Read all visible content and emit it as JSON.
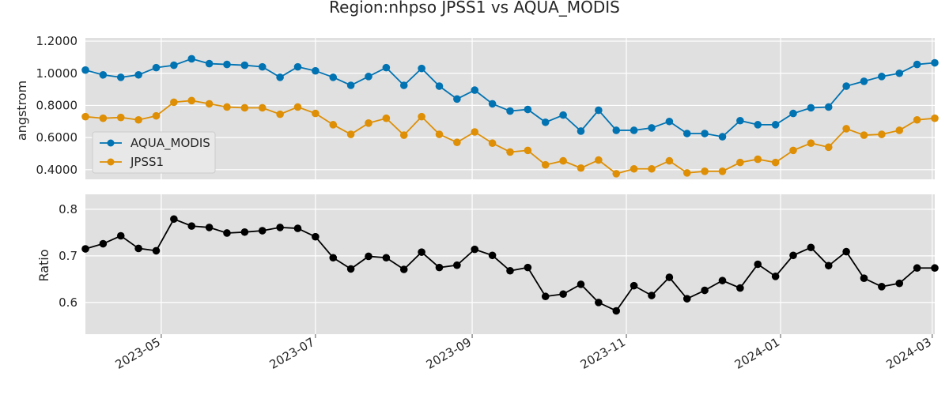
{
  "chart_data": [
    {
      "type": "line",
      "title": "Region:nhpso JPSS1 vs AQUA_MODIS",
      "xlabel": "",
      "ylabel": "angstrom",
      "ylim": [
        0.34,
        1.22
      ],
      "yticks": [
        "0.4000",
        "0.6000",
        "0.8000",
        "1.0000",
        "1.2000"
      ],
      "ytick_values": [
        0.4,
        0.6,
        0.8,
        1.0,
        1.2
      ],
      "grid": true,
      "legend_position": "lower-left",
      "x_start": "2023-04-01",
      "x_step_days": 7,
      "series": [
        {
          "name": "AQUA_MODIS",
          "color": "#0173b2",
          "values": [
            1.02,
            0.99,
            0.975,
            0.99,
            1.035,
            1.05,
            1.09,
            1.06,
            1.055,
            1.05,
            1.04,
            0.975,
            1.04,
            1.015,
            0.975,
            0.925,
            0.98,
            1.035,
            0.925,
            1.03,
            0.92,
            0.84,
            0.895,
            0.81,
            0.765,
            0.775,
            0.695,
            0.74,
            0.64,
            0.77,
            0.645,
            0.645,
            0.66,
            0.7,
            0.625,
            0.625,
            0.605,
            0.705,
            0.68,
            0.68,
            0.75,
            0.785,
            0.79,
            0.92,
            0.95,
            0.98,
            1.0,
            1.055,
            1.065
          ]
        },
        {
          "name": "JPSS1",
          "color": "#de8f05",
          "values": [
            0.73,
            0.72,
            0.725,
            0.71,
            0.735,
            0.82,
            0.83,
            0.81,
            0.79,
            0.785,
            0.785,
            0.745,
            0.79,
            0.75,
            0.68,
            0.62,
            0.69,
            0.72,
            0.615,
            0.73,
            0.62,
            0.57,
            0.635,
            0.565,
            0.51,
            0.52,
            0.43,
            0.455,
            0.41,
            0.46,
            0.375,
            0.405,
            0.405,
            0.455,
            0.38,
            0.39,
            0.39,
            0.445,
            0.465,
            0.445,
            0.52,
            0.565,
            0.54,
            0.655,
            0.615,
            0.62,
            0.645,
            0.71,
            0.72
          ]
        }
      ]
    },
    {
      "type": "line",
      "title": "",
      "xlabel": "",
      "ylabel": "Ratio",
      "ylim": [
        0.532,
        0.832
      ],
      "yticks": [
        "0.6",
        "0.7",
        "0.8"
      ],
      "ytick_values": [
        0.6,
        0.7,
        0.8
      ],
      "grid": true,
      "x_start": "2023-04-01",
      "x_step_days": 7,
      "xticks": [
        "2023-05",
        "2023-07",
        "2023-09",
        "2023-11",
        "2024-01",
        "2024-03"
      ],
      "xtick_dates": [
        "2023-05-01",
        "2023-07-01",
        "2023-09-01",
        "2023-11-01",
        "2024-01-01",
        "2024-03-01"
      ],
      "series": [
        {
          "color": "#000000",
          "values": [
            0.715,
            0.726,
            0.743,
            0.716,
            0.711,
            0.779,
            0.764,
            0.761,
            0.749,
            0.751,
            0.754,
            0.761,
            0.759,
            0.741,
            0.696,
            0.672,
            0.699,
            0.696,
            0.671,
            0.708,
            0.675,
            0.68,
            0.714,
            0.701,
            0.668,
            0.675,
            0.613,
            0.618,
            0.639,
            0.6,
            0.582,
            0.636,
            0.615,
            0.654,
            0.608,
            0.626,
            0.647,
            0.631,
            0.682,
            0.656,
            0.701,
            0.718,
            0.679,
            0.709,
            0.652,
            0.634,
            0.641,
            0.674,
            0.674
          ]
        }
      ]
    }
  ]
}
